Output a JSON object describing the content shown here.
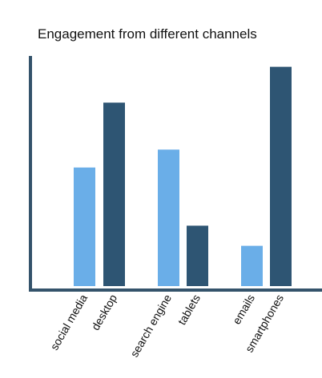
{
  "chart_data": {
    "type": "bar",
    "title": "Engagement from different channels",
    "xlabel": "",
    "ylabel": "",
    "ylim": [
      0,
      100
    ],
    "grid": false,
    "legend": "none",
    "categories": [
      "social media",
      "desktop",
      "search engine",
      "tablets",
      "emails",
      "smartphones"
    ],
    "values": [
      53,
      82,
      61,
      27,
      18,
      98
    ],
    "colors": [
      "#6aaee8",
      "#2e5573",
      "#6aaee8",
      "#2e5573",
      "#6aaee8",
      "#2e5573"
    ],
    "axis_color": "#34536b"
  }
}
